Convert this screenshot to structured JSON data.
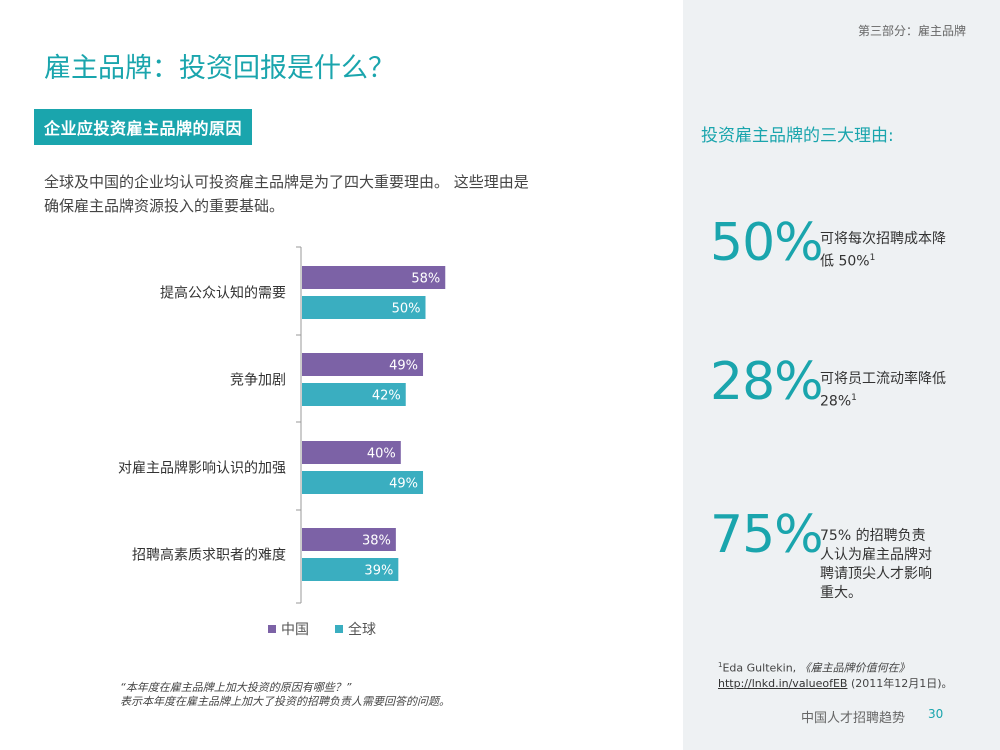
{
  "section": "第三部分：雇主品牌",
  "title": "雇主品牌：投资回报是什么？",
  "subheader": "企业应投资雇主品牌的原因",
  "intro_line1": "全球及中国的企业均认可投资雇主品牌是为了四大重要理由。 这些理由是",
  "intro_line2": "确保雇主品牌资源投入的重要基础。",
  "colors": {
    "china": "#7c62a6",
    "global": "#3aaec0",
    "accent": "#1aa5ad"
  },
  "chart_data": {
    "type": "bar",
    "orientation": "horizontal",
    "categories": [
      "提高公众认知的需要",
      "竞争加剧",
      "对雇主品牌影响认识的加强",
      "招聘高素质求职者的难度"
    ],
    "series": [
      {
        "name": "中国",
        "values": [
          58,
          49,
          40,
          38
        ],
        "labels": [
          "58%",
          "49%",
          "40%",
          "38%"
        ]
      },
      {
        "name": "全球",
        "values": [
          50,
          42,
          49,
          39
        ],
        "labels": [
          "50%",
          "42%",
          "49%",
          "39%"
        ]
      }
    ],
    "legend_position": "bottom"
  },
  "footnote_line1": "“本年度在雇主品牌上加大投资的原因有哪些？”",
  "footnote_line2": "表示本年度在雇主品牌上加大了投资的招聘负责人需要回答的问题。",
  "sidebar": {
    "heading": "投资雇主品牌的三大理由:",
    "stats": [
      {
        "value": "50%",
        "text": "可将每次招聘成本降低 50%",
        "sup": "1"
      },
      {
        "value": "28%",
        "text": "可将员工流动率降低 28%",
        "sup": "1"
      },
      {
        "value": "75%",
        "text": "75% 的招聘负责人认为雇主品牌对聘请顶尖人才影响重大。",
        "sup": ""
      }
    ],
    "ref_sup": "1",
    "ref_author": "Eda Gultekin, ",
    "ref_book": "《雇主品牌价值何在》",
    "ref_link": "http://lnkd.in/valueofEB",
    "ref_date": " (2011年12月1日)。"
  },
  "footer": {
    "report": "中国人才招聘趋势",
    "page": "30"
  }
}
